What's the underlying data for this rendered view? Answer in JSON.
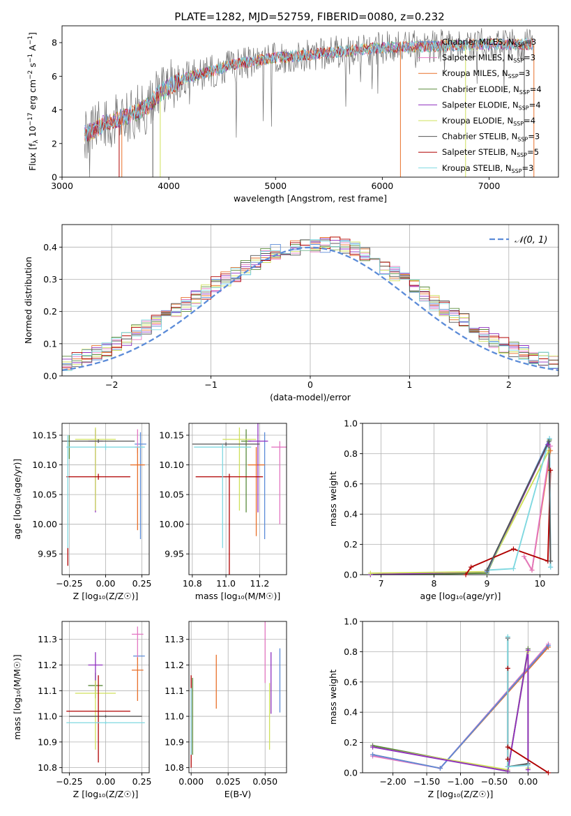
{
  "figure": {
    "title": "PLATE=1282, MJD=52759, FIBERID=0080, z=0.232"
  },
  "colors": {
    "Chabrier MILES": "#5b8bd8",
    "Salpeter MILES": "#e377c2",
    "Kroupa MILES": "#e8702a",
    "Chabrier ELODIE": "#5a8a3a",
    "Salpeter ELODIE": "#8e2fbf",
    "Kroupa ELODIE": "#cfe05a",
    "Chabrier STELIB": "#555555",
    "Salpeter STELIB": "#b00000",
    "Kroupa STELIB": "#7fd8e0",
    "normal_curve": "#5b8bd8",
    "grid": "#b0b0b0"
  },
  "chart_data": [
    {
      "id": "spectrum",
      "type": "line",
      "title": "PLATE=1282, MJD=52759, FIBERID=0080, z=0.232",
      "xlabel": "wavelength [Angstrom, rest frame]",
      "ylabel": "Flux [f_λ 10^-17 erg cm^-2 s^-1 A^-1]",
      "xlim": [
        3000,
        7650
      ],
      "ylim": [
        0,
        9
      ],
      "xticks": [
        3000,
        4000,
        5000,
        6000,
        7000
      ],
      "yticks": [
        0,
        2,
        4,
        6,
        8
      ],
      "grid": false,
      "legend_position": "right",
      "legend": [
        {
          "label": "Chabrier MILES, N_SSP=3",
          "color": "#5b8bd8"
        },
        {
          "label": "Salpeter MILES, N_SSP=3",
          "color": "#e377c2"
        },
        {
          "label": "Kroupa MILES, N_SSP=3",
          "color": "#e8702a"
        },
        {
          "label": "Chabrier ELODIE, N_SSP=4",
          "color": "#5a8a3a"
        },
        {
          "label": "Salpeter ELODIE, N_SSP=4",
          "color": "#8e2fbf"
        },
        {
          "label": "Kroupa ELODIE, N_SSP=4",
          "color": "#cfe05a"
        },
        {
          "label": "Chabrier STELIB, N_SSP=3",
          "color": "#555555"
        },
        {
          "label": "Salpeter STELIB, N_SSP=5",
          "color": "#b00000"
        },
        {
          "label": "Kroupa STELIB, N_SSP=3",
          "color": "#7fd8e0"
        }
      ],
      "continuum_points": [
        {
          "x": 3210,
          "y": 2.6
        },
        {
          "x": 3300,
          "y": 2.7
        },
        {
          "x": 3400,
          "y": 3.3
        },
        {
          "x": 3500,
          "y": 3.4
        },
        {
          "x": 3600,
          "y": 3.6
        },
        {
          "x": 3700,
          "y": 3.9
        },
        {
          "x": 3800,
          "y": 4.2
        },
        {
          "x": 3900,
          "y": 4.9
        },
        {
          "x": 4000,
          "y": 5.4
        },
        {
          "x": 4200,
          "y": 6.0
        },
        {
          "x": 4400,
          "y": 6.3
        },
        {
          "x": 4600,
          "y": 6.7
        },
        {
          "x": 4800,
          "y": 6.9
        },
        {
          "x": 5000,
          "y": 7.1
        },
        {
          "x": 5200,
          "y": 7.2
        },
        {
          "x": 5500,
          "y": 7.4
        },
        {
          "x": 6000,
          "y": 7.7
        },
        {
          "x": 6500,
          "y": 7.8
        },
        {
          "x": 7000,
          "y": 7.9
        },
        {
          "x": 7400,
          "y": 7.9
        }
      ]
    },
    {
      "id": "residuals",
      "type": "step",
      "xlabel": "(data-model)/error",
      "ylabel": "Normed distribution",
      "xlim": [
        -2.5,
        2.5
      ],
      "ylim": [
        0,
        0.47
      ],
      "xticks": [
        -2,
        -1,
        0,
        1,
        2
      ],
      "yticks": [
        0.0,
        0.1,
        0.2,
        0.3,
        0.4
      ],
      "grid": true,
      "legend_position": "top-right",
      "curve_label": "𝒩(0, 1)",
      "bin_width": 0.1,
      "base_histogram": [
        0.02,
        0.025,
        0.03,
        0.033,
        0.035,
        0.04,
        0.05,
        0.06,
        0.07,
        0.085,
        0.1,
        0.118,
        0.135,
        0.15,
        0.165,
        0.185,
        0.205,
        0.222,
        0.24,
        0.262,
        0.285,
        0.3,
        0.315,
        0.335,
        0.355,
        0.375,
        0.385,
        0.395,
        0.4,
        0.405,
        0.405,
        0.405,
        0.41,
        0.4,
        0.395,
        0.38,
        0.36,
        0.34,
        0.32,
        0.3,
        0.28,
        0.255,
        0.23,
        0.21,
        0.19,
        0.17,
        0.15,
        0.13,
        0.11,
        0.095,
        0.08,
        0.07,
        0.06,
        0.05,
        0.045,
        0.04,
        0.035,
        0.03,
        0.028,
        0.025
      ]
    },
    {
      "id": "age-vs-Z",
      "type": "errorbar",
      "xlabel": "Z [log10(Z/Z☉)]",
      "ylabel": "age  [log10(age/yr)]",
      "xlim": [
        -0.3,
        0.3
      ],
      "ylim": [
        9.915,
        10.17
      ],
      "xticks": [
        -0.25,
        0.0,
        0.25
      ],
      "yticks": [
        9.95,
        10.0,
        10.05,
        10.1,
        10.15
      ],
      "grid": true,
      "points": [
        {
          "model": "Chabrier MILES",
          "x": 0.24,
          "y": 10.135,
          "xerr": 0.04,
          "yerr": [
            0.16,
            0.02
          ]
        },
        {
          "model": "Salpeter MILES",
          "x": 0.22,
          "y": 10.13,
          "xerr": 0.02,
          "yerr": [
            0.01,
            0.03
          ]
        },
        {
          "model": "Kroupa MILES",
          "x": 0.22,
          "y": 10.1,
          "xerr": 0.05,
          "yerr": [
            0.11,
            0.03
          ]
        },
        {
          "model": "Chabrier ELODIE",
          "x": -0.25,
          "y": 10.14,
          "xerr": 0.0,
          "yerr": [
            0.03,
            0.01
          ]
        },
        {
          "model": "Salpeter ELODIE",
          "x": -0.07,
          "y": 10.14,
          "xerr": 0.05,
          "yerr": [
            0.12,
            0.02
          ]
        },
        {
          "model": "Kroupa ELODIE",
          "x": -0.07,
          "y": 10.143,
          "xerr": 0.14,
          "yerr": [
            0.12,
            0.02
          ]
        },
        {
          "model": "Chabrier STELIB",
          "x": -0.05,
          "y": 10.14,
          "xerr": 0.25,
          "yerr": [
            0.003,
            0.003
          ]
        },
        {
          "model": "Salpeter STELIB",
          "x": -0.05,
          "y": 10.08,
          "xerr": 0.22,
          "yerr": [
            0.005,
            0.005
          ]
        },
        {
          "model": "Kroupa STELIB",
          "x": 0.0,
          "y": 10.13,
          "xerr": 0.27,
          "yerr": [
            0.005,
            0.005
          ]
        },
        {
          "model": "Salpeter STELIB",
          "x": -0.26,
          "y": 9.95,
          "xerr": 0.0,
          "yerr": [
            0.02,
            0.01
          ]
        },
        {
          "model": "Kroupa STELIB",
          "x": -0.26,
          "y": 10.06,
          "xerr": 0.0,
          "yerr": [
            0.1,
            0.09
          ]
        }
      ]
    },
    {
      "id": "age-vs-mass",
      "type": "errorbar",
      "xlabel": "mass [log10(M/M☉)]",
      "ylabel": "",
      "xlim": [
        10.78,
        11.36
      ],
      "ylim": [
        9.915,
        10.17
      ],
      "xticks": [
        10.8,
        11.0,
        11.2
      ],
      "yticks": [
        9.95,
        10.0,
        10.05,
        10.1,
        10.15
      ],
      "grid": true,
      "points": [
        {
          "model": "Chabrier MILES",
          "x": 11.23,
          "y": 10.135,
          "xerr": 0.0,
          "yerr": [
            0.16,
            0.02
          ]
        },
        {
          "model": "Salpeter MILES",
          "x": 11.32,
          "y": 10.13,
          "xerr": 0.05,
          "yerr": [
            0.13,
            0.01
          ]
        },
        {
          "model": "Kroupa MILES",
          "x": 11.18,
          "y": 10.1,
          "xerr": 0.05,
          "yerr": [
            0.12,
            0.03
          ]
        },
        {
          "model": "Chabrier ELODIE",
          "x": 11.12,
          "y": 10.14,
          "xerr": 0.03,
          "yerr": [
            0.12,
            0.02
          ]
        },
        {
          "model": "Salpeter ELODIE",
          "x": 11.19,
          "y": 10.14,
          "xerr": 0.06,
          "yerr": [
            0.12,
            0.03
          ]
        },
        {
          "model": "Kroupa ELODIE",
          "x": 11.08,
          "y": 10.143,
          "xerr": 0.1,
          "yerr": [
            0.12,
            0.02
          ]
        },
        {
          "model": "Chabrier STELIB",
          "x": 11.0,
          "y": 10.135,
          "xerr": 0.2,
          "yerr": [
            0.003,
            0.003
          ]
        },
        {
          "model": "Salpeter STELIB",
          "x": 11.02,
          "y": 10.08,
          "xerr": 0.2,
          "yerr": [
            0.2,
            0.005
          ]
        },
        {
          "model": "Kroupa STELIB",
          "x": 10.98,
          "y": 10.13,
          "xerr": 0.17,
          "yerr": [
            0.17,
            0.005
          ]
        }
      ]
    },
    {
      "id": "weight-vs-age",
      "type": "line",
      "xlabel": "age  [log10(age/yr)]",
      "ylabel": "mass weight",
      "xlim": [
        6.65,
        10.35
      ],
      "ylim": [
        0,
        1.0
      ],
      "xticks": [
        7,
        8,
        9,
        10
      ],
      "yticks": [
        0.0,
        0.2,
        0.4,
        0.6,
        0.8,
        1.0
      ],
      "grid": true,
      "series": [
        {
          "model": "Chabrier ELODIE",
          "x": [
            6.8,
            9.0,
            10.18
          ],
          "y": [
            0.0,
            0.01,
            0.89
          ]
        },
        {
          "model": "Salpeter ELODIE",
          "x": [
            6.8,
            9.0,
            10.15
          ],
          "y": [
            0.0,
            0.02,
            0.86
          ]
        },
        {
          "model": "Kroupa ELODIE",
          "x": [
            6.8,
            9.0,
            10.17
          ],
          "y": [
            0.01,
            0.02,
            0.82
          ]
        },
        {
          "model": "Chabrier MILES",
          "x": [
            9.0,
            10.18,
            10.2
          ],
          "y": [
            0.02,
            0.9,
            0.05
          ]
        },
        {
          "model": "Kroupa MILES",
          "x": [
            9.7,
            9.85,
            10.2
          ],
          "y": [
            0.12,
            0.03,
            0.82
          ]
        },
        {
          "model": "Salpeter MILES",
          "x": [
            9.7,
            9.85,
            10.2
          ],
          "y": [
            0.12,
            0.03,
            0.85
          ]
        },
        {
          "model": "Salpeter STELIB",
          "x": [
            8.6,
            8.7,
            9.5,
            10.15,
            10.2
          ],
          "y": [
            0.0,
            0.05,
            0.17,
            0.09,
            0.69
          ]
        },
        {
          "model": "Kroupa STELIB",
          "x": [
            9.0,
            9.5,
            10.18,
            10.2
          ],
          "y": [
            0.03,
            0.04,
            0.9,
            0.05
          ]
        },
        {
          "model": "Chabrier STELIB",
          "x": [
            9.0,
            10.17,
            10.2
          ],
          "y": [
            0.03,
            0.88,
            0.09
          ]
        }
      ]
    },
    {
      "id": "mass-vs-Z",
      "type": "errorbar",
      "xlabel": "Z [log10(Z/Z☉)]",
      "ylabel": "mass [log10(M/M☉)]",
      "xlim": [
        -0.3,
        0.3
      ],
      "ylim": [
        10.78,
        11.37
      ],
      "xticks": [
        -0.25,
        0.0,
        0.25
      ],
      "yticks": [
        10.8,
        10.9,
        11.0,
        11.1,
        11.2,
        11.3
      ],
      "grid": true,
      "points": [
        {
          "model": "Chabrier MILES",
          "x": 0.23,
          "y": 11.235,
          "xerr": 0.04,
          "yerr": [
            0.0,
            0.0
          ]
        },
        {
          "model": "Salpeter MILES",
          "x": 0.22,
          "y": 11.32,
          "xerr": 0.04,
          "yerr": [
            0.1,
            0.03
          ]
        },
        {
          "model": "Kroupa MILES",
          "x": 0.22,
          "y": 11.18,
          "xerr": 0.04,
          "yerr": [
            0.12,
            0.05
          ]
        },
        {
          "model": "Chabrier ELODIE",
          "x": -0.07,
          "y": 11.12,
          "xerr": 0.05,
          "yerr": [
            0.05,
            0.05
          ]
        },
        {
          "model": "Salpeter ELODIE",
          "x": -0.07,
          "y": 11.2,
          "xerr": 0.05,
          "yerr": [
            0.1,
            0.05
          ]
        },
        {
          "model": "Kroupa ELODIE",
          "x": -0.07,
          "y": 11.09,
          "xerr": 0.14,
          "yerr": [
            0.22,
            0.05
          ]
        },
        {
          "model": "Chabrier STELIB",
          "x": 0.0,
          "y": 11.0,
          "xerr": 0.25,
          "yerr": [
            0.005,
            0.005
          ]
        },
        {
          "model": "Salpeter STELIB",
          "x": -0.05,
          "y": 11.02,
          "xerr": 0.22,
          "yerr": [
            0.2,
            0.14
          ]
        },
        {
          "model": "Kroupa STELIB",
          "x": 0.0,
          "y": 10.975,
          "xerr": 0.27,
          "yerr": [
            0.005,
            0.005
          ]
        }
      ]
    },
    {
      "id": "mass-vs-EBV",
      "type": "errorbar",
      "xlabel": "E(B-V)",
      "ylabel": "",
      "xlim": [
        -0.0015,
        0.0645
      ],
      "ylim": [
        10.78,
        11.37
      ],
      "xticks": [
        0.0,
        0.025,
        0.05
      ],
      "xtick_labels": [
        "0.000",
        "0.025",
        "0.050"
      ],
      "yticks": [
        10.8,
        10.9,
        11.0,
        11.1,
        11.2,
        11.3
      ],
      "grid": true,
      "points": [
        {
          "model": "Chabrier MILES",
          "x": 0.06,
          "y": 11.135,
          "yerr": [
            0.12,
            0.13
          ]
        },
        {
          "model": "Salpeter MILES",
          "x": 0.05,
          "y": 11.2,
          "yerr": [
            0.07,
            0.17
          ]
        },
        {
          "model": "Kroupa MILES",
          "x": 0.017,
          "y": 11.13,
          "yerr": [
            0.1,
            0.11
          ]
        },
        {
          "model": "Chabrier ELODIE",
          "x": 0.001,
          "y": 11.0,
          "yerr": [
            0.15,
            0.15
          ]
        },
        {
          "model": "Salpeter ELODIE",
          "x": 0.054,
          "y": 11.12,
          "yerr": [
            0.11,
            0.13
          ]
        },
        {
          "model": "Kroupa ELODIE",
          "x": 0.053,
          "y": 11.0,
          "yerr": [
            0.13,
            0.13
          ]
        },
        {
          "model": "Chabrier STELIB",
          "x": 0.0,
          "y": 11.0,
          "yerr": [
            0.15,
            0.15
          ]
        },
        {
          "model": "Salpeter STELIB",
          "x": 0.0,
          "y": 10.98,
          "yerr": [
            0.18,
            0.18
          ]
        },
        {
          "model": "Kroupa STELIB",
          "x": 0.0,
          "y": 10.98,
          "yerr": [
            0.13,
            0.13
          ]
        }
      ]
    },
    {
      "id": "weight-vs-Z",
      "type": "line",
      "xlabel": "Z [log10(Z/Z☉)]",
      "ylabel": "mass weight",
      "xlim": [
        -2.45,
        0.45
      ],
      "ylim": [
        0,
        1.0
      ],
      "xticks": [
        -2.0,
        -1.5,
        -1.0,
        -0.5,
        0.0
      ],
      "yticks": [
        0.0,
        0.2,
        0.4,
        0.6,
        0.8,
        1.0
      ],
      "grid": true,
      "series": [
        {
          "model": "Kroupa MILES",
          "x": [
            -2.3,
            -1.3,
            0.3
          ],
          "y": [
            0.12,
            0.03,
            0.83
          ]
        },
        {
          "model": "Salpeter MILES",
          "x": [
            -2.3,
            -1.3,
            0.3
          ],
          "y": [
            0.11,
            0.03,
            0.85
          ]
        },
        {
          "model": "Chabrier MILES",
          "x": [
            -2.3,
            -1.3,
            0.3
          ],
          "y": [
            0.12,
            0.03,
            0.84
          ]
        },
        {
          "model": "Chabrier ELODIE",
          "x": [
            -2.3,
            -0.3,
            0.0,
            0.0
          ],
          "y": [
            0.18,
            0.01,
            0.82,
            0.03
          ]
        },
        {
          "model": "Kroupa ELODIE",
          "x": [
            -2.3,
            -0.3,
            0.0,
            0.0
          ],
          "y": [
            0.17,
            0.02,
            0.8,
            0.03
          ]
        },
        {
          "model": "Salpeter ELODIE",
          "x": [
            -2.3,
            -0.3,
            0.0,
            0.0
          ],
          "y": [
            0.17,
            0.01,
            0.81,
            0.02
          ]
        },
        {
          "model": "Salpeter STELIB",
          "x": [
            -0.3,
            -0.3,
            -0.3,
            0.3
          ],
          "y": [
            0.69,
            0.09,
            0.17,
            0.0
          ]
        },
        {
          "model": "Chabrier STELIB",
          "x": [
            -0.3,
            -0.3,
            0.0
          ],
          "y": [
            0.89,
            0.04,
            0.06
          ]
        },
        {
          "model": "Kroupa STELIB",
          "x": [
            -0.3,
            -0.3,
            0.0
          ],
          "y": [
            0.9,
            0.04,
            0.05
          ]
        }
      ]
    }
  ]
}
